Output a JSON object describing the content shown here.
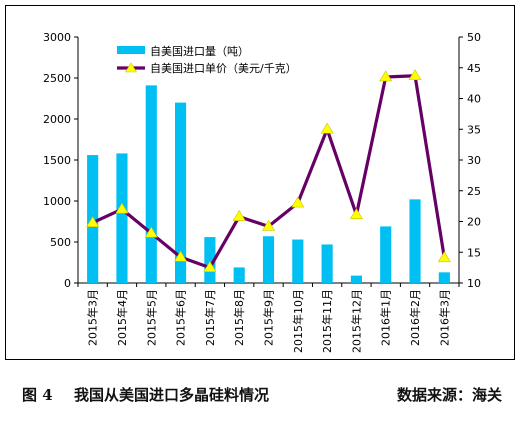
{
  "caption": {
    "figure_label": "图 4",
    "title": "我国从美国进口多晶硅料情况",
    "source": "数据来源：海关"
  },
  "colors": {
    "bar": "#00BFF3",
    "line": "#660066",
    "marker": "#FFFF00",
    "marker_edge": "#C8C800"
  },
  "chart_data": {
    "type": "bar",
    "categories": [
      "2015年3月",
      "2015年4月",
      "2015年5月",
      "2015年6月",
      "2015年7月",
      "2015年8月",
      "2015年9月",
      "2015年10月",
      "2015年11月",
      "2015年12月",
      "2016年1月",
      "2016年2月",
      "2016年3月"
    ],
    "series": [
      {
        "name": "自美国进口量（吨）",
        "type": "bar",
        "axis": "left",
        "values": [
          1560,
          1580,
          2410,
          2200,
          560,
          190,
          570,
          530,
          470,
          90,
          690,
          1020,
          130
        ]
      },
      {
        "name": "自美国进口单价（美元/千克）",
        "type": "line",
        "axis": "right",
        "values": [
          19.8,
          22.0,
          18.1,
          14.2,
          12.5,
          20.8,
          19.2,
          23.0,
          35.0,
          21.1,
          43.5,
          43.7,
          14.1
        ]
      }
    ],
    "y_left": {
      "min": 0,
      "max": 3000,
      "step": 500,
      "ticks": [
        "0",
        "500",
        "1000",
        "1500",
        "2000",
        "2500",
        "3000"
      ]
    },
    "y_right": {
      "min": 10,
      "max": 50,
      "step": 5,
      "ticks": [
        "10",
        "15",
        "20",
        "25",
        "30",
        "35",
        "40",
        "45",
        "50"
      ]
    },
    "grid": false,
    "legend_position": "top-left"
  }
}
